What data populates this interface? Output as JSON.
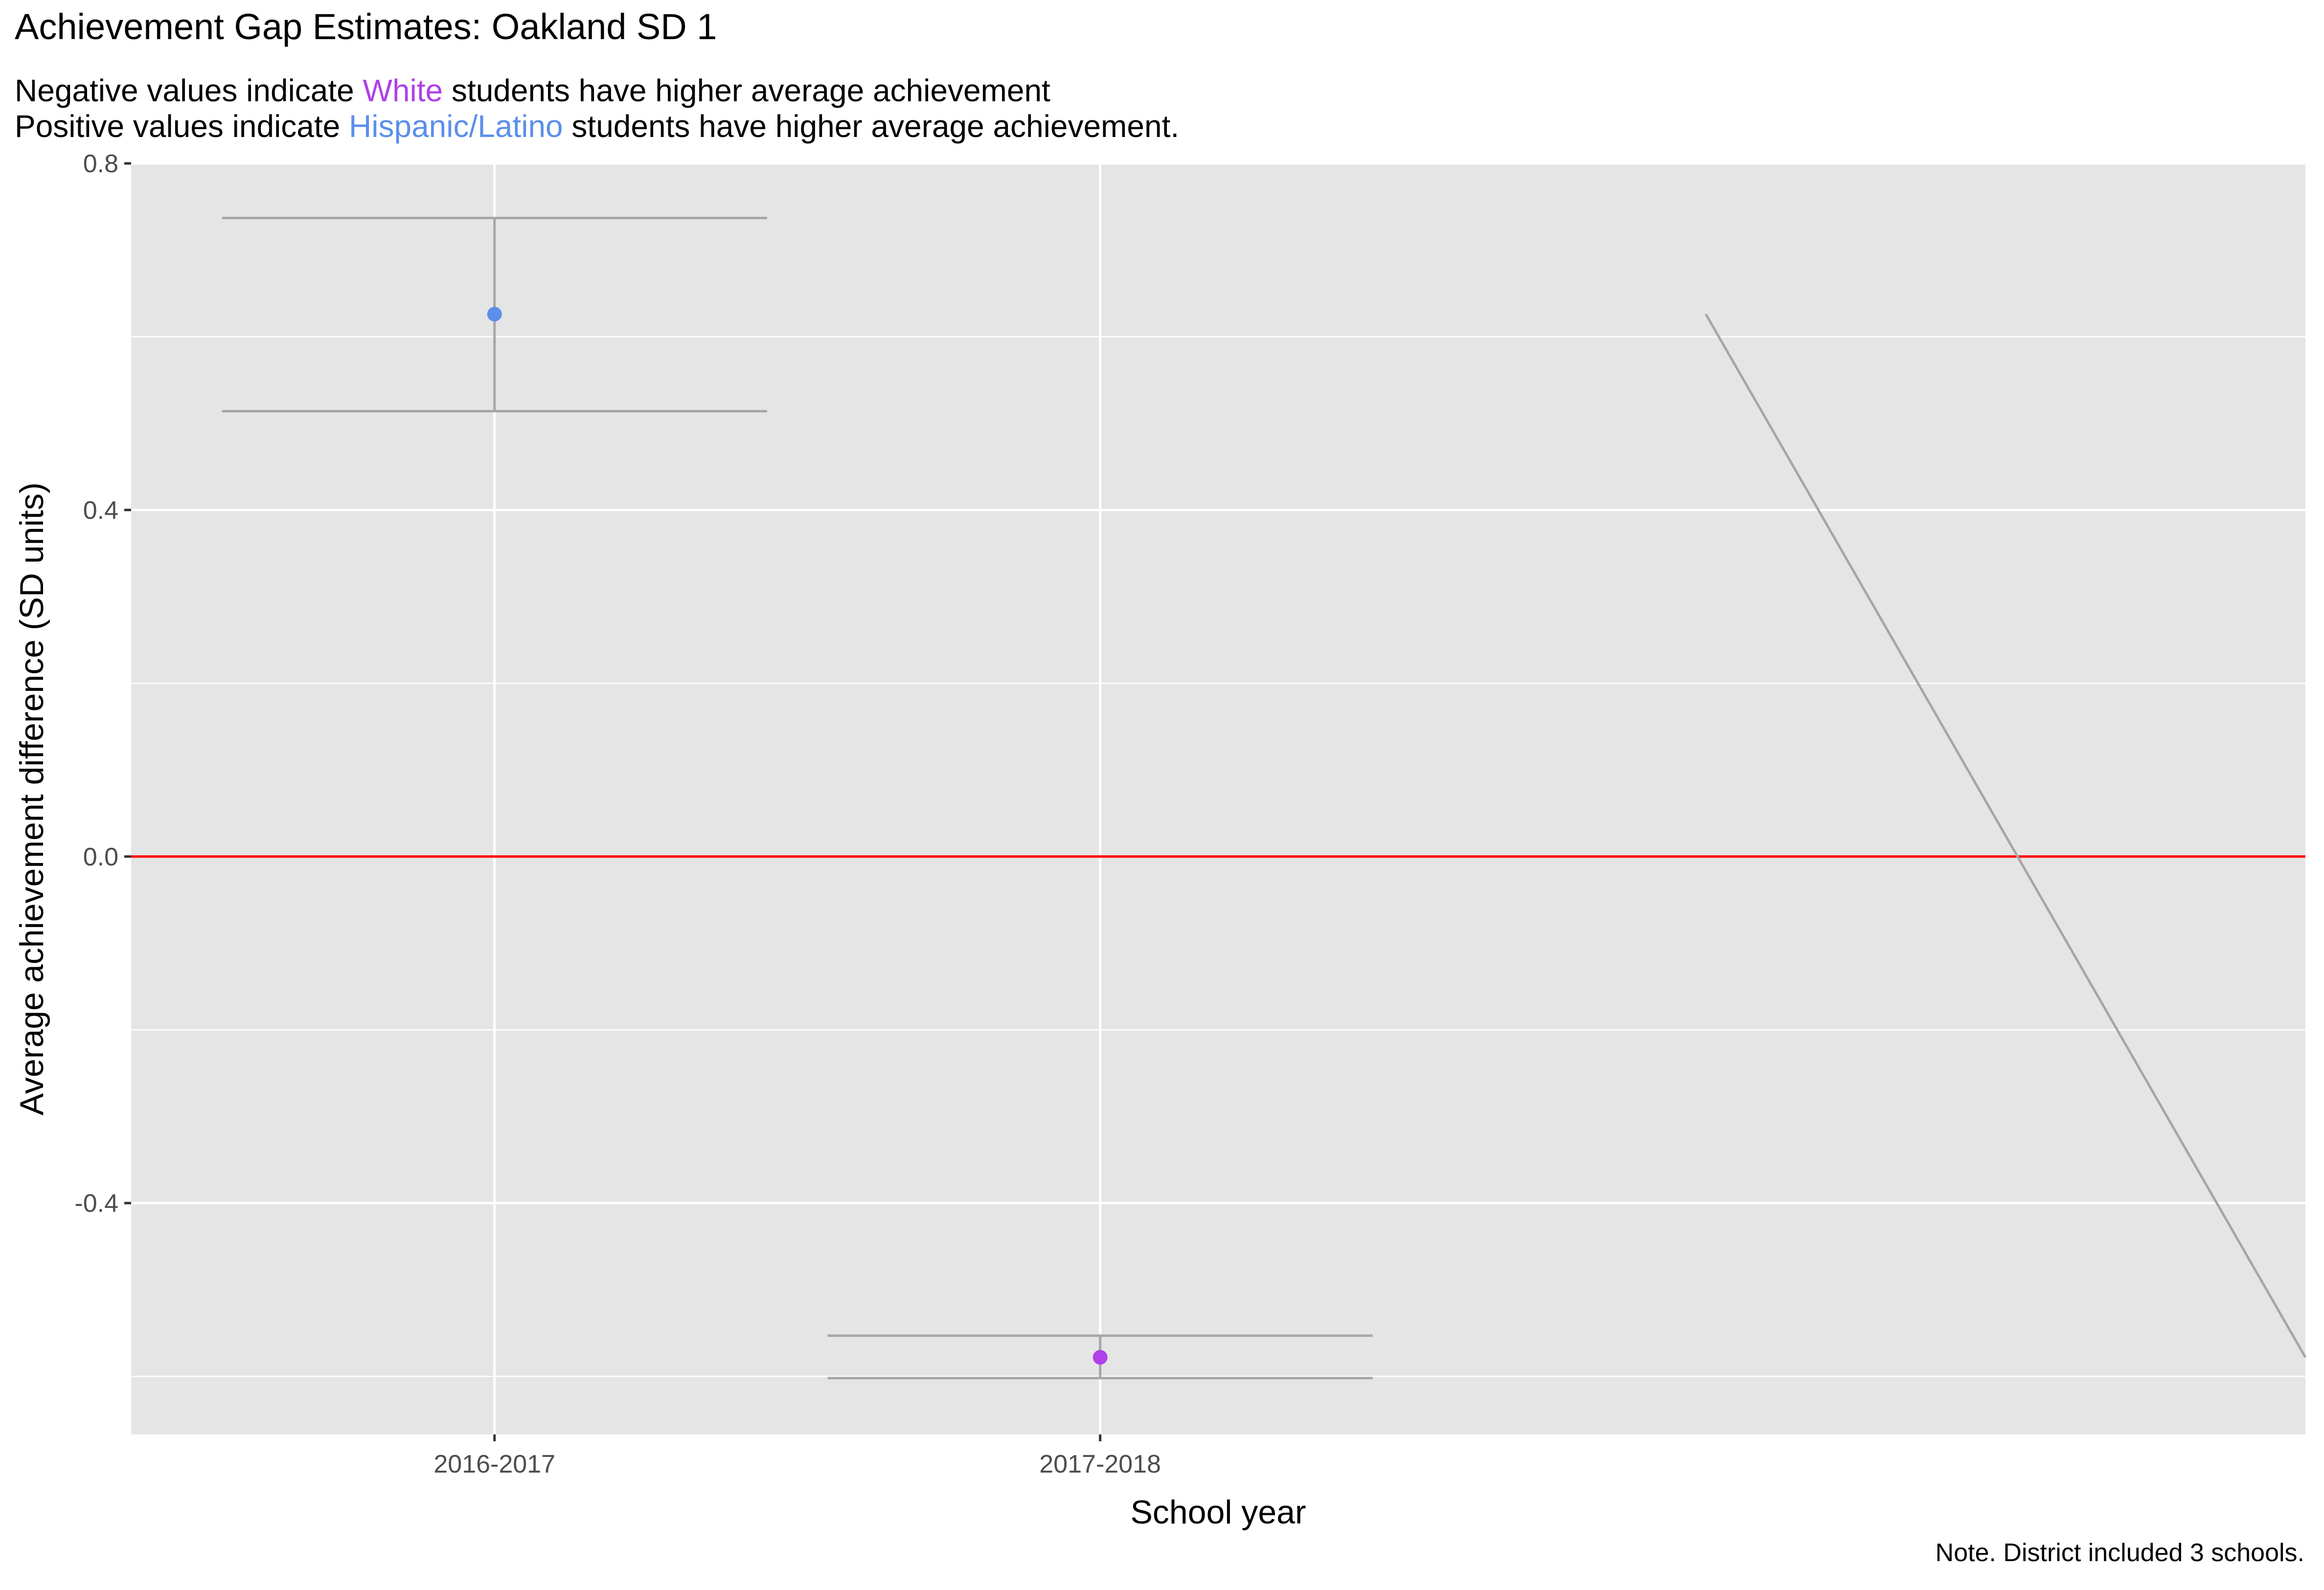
{
  "title": "Achievement Gap Estimates: Oakland SD 1",
  "subtitle": {
    "line1": {
      "before": "Negative values indicate ",
      "highlight": "White",
      "after": " students have higher average achievement"
    },
    "line2": {
      "before": "Positive values indicate ",
      "highlight": "Hispanic/Latino",
      "after": " students have higher average achievement."
    }
  },
  "caption": "Note. District included 3 schools.",
  "colors": {
    "panel": "#E5E5E5",
    "grid": "#FFFFFF",
    "zero_line": "#FF0000",
    "errorbar": "#A6A6A6",
    "connector": "#A6A6A6",
    "white_group": "#B040E8",
    "hispanic_group": "#5B8FEB"
  },
  "chart_data": {
    "type": "scatter",
    "title": "Achievement Gap Estimates: Oakland SD 1",
    "xlabel": "School year",
    "ylabel": "Average achievement difference (SD units)",
    "categories": [
      "2016-2017",
      "2017-2018"
    ],
    "x_range_positions": [
      0.4,
      3.99
    ],
    "ylim": [
      -0.667,
      0.8
    ],
    "y_ticks": [
      -0.4,
      0.0,
      0.4,
      0.8
    ],
    "y_tick_labels": [
      "-0.4",
      "0.0",
      "0.4",
      "0.8"
    ],
    "grid": true,
    "reference_line": {
      "y": 0.0,
      "color": "#FF0000"
    },
    "points": [
      {
        "x": "2016-2017",
        "estimate": 0.626,
        "lower": 0.514,
        "upper": 0.737,
        "group": "Hispanic/Latino",
        "color": "#5B8FEB"
      },
      {
        "x": "2017-2018",
        "estimate": -0.578,
        "lower": -0.602,
        "upper": -0.553,
        "group": "White",
        "color": "#B040E8"
      }
    ],
    "connector_line": {
      "from": {
        "x": 3.0,
        "y": 0.626
      },
      "to": {
        "x": 3.99,
        "y": -0.578
      }
    }
  }
}
